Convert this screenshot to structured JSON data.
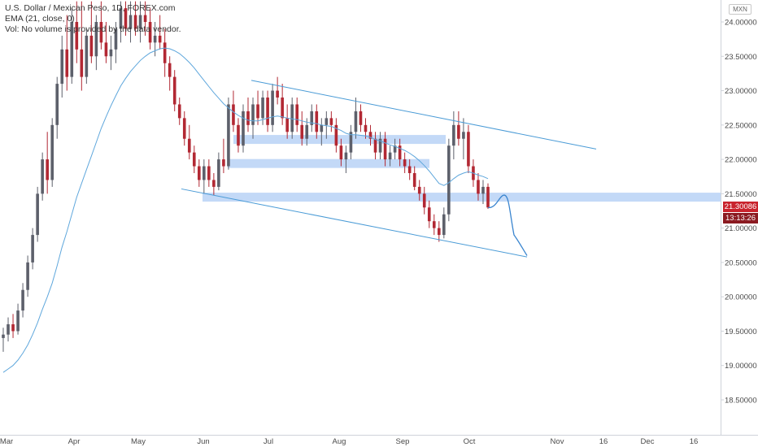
{
  "legend": {
    "title": "U.S. Dollar / Mexican Peso, 1D, FOREX.com",
    "indicator": "EMA (21, close, 0)",
    "volume_note": "Vol: No volume is provided by the data vendor."
  },
  "currency_badge": "MXN",
  "last_price_label": "21.30086",
  "countdown_label": "13:13:26",
  "colors": {
    "up": "#5d606b",
    "down": "#b22833",
    "ema": "#5fa7dc",
    "channel": "#4a9bd6",
    "zone": "#a9c9f3",
    "price_badge": "#c9232d",
    "countdown_badge": "#8b1a21"
  },
  "chart_data": {
    "type": "candlestick",
    "y_ticks": [
      "24.00000",
      "23.50000",
      "23.00000",
      "22.50000",
      "22.00000",
      "21.50000",
      "21.00000",
      "20.50000",
      "20.00000",
      "19.50000",
      "19.00000",
      "18.50000"
    ],
    "x_ticks": [
      "Mar",
      "Apr",
      "May",
      "Jun",
      "Jul",
      "Aug",
      "Sep",
      "Oct",
      "Nov",
      "16",
      "Dec",
      "16"
    ],
    "ylim": [
      18.35,
      24.3
    ],
    "last_price": 21.30086,
    "candles": [
      [
        19.4,
        19.55,
        19.2,
        19.45
      ],
      [
        19.45,
        19.7,
        19.35,
        19.6
      ],
      [
        19.6,
        19.75,
        19.4,
        19.5
      ],
      [
        19.5,
        19.9,
        19.45,
        19.8
      ],
      [
        19.8,
        20.2,
        19.7,
        20.1
      ],
      [
        20.1,
        20.6,
        20.0,
        20.5
      ],
      [
        20.5,
        21.0,
        20.4,
        20.9
      ],
      [
        20.9,
        21.6,
        20.8,
        21.5
      ],
      [
        21.5,
        22.1,
        21.4,
        22.0
      ],
      [
        22.0,
        22.4,
        21.5,
        21.7
      ],
      [
        21.7,
        22.6,
        21.6,
        22.5
      ],
      [
        22.5,
        23.2,
        22.3,
        23.1
      ],
      [
        23.1,
        23.8,
        22.9,
        23.6
      ],
      [
        23.6,
        24.1,
        23.0,
        23.2
      ],
      [
        23.2,
        24.2,
        23.1,
        24.0
      ],
      [
        24.0,
        24.3,
        23.4,
        23.6
      ],
      [
        23.6,
        24.3,
        23.0,
        23.2
      ],
      [
        23.2,
        23.9,
        23.1,
        23.8
      ],
      [
        23.8,
        24.3,
        23.4,
        23.5
      ],
      [
        23.5,
        24.1,
        23.3,
        24.0
      ],
      [
        24.0,
        24.3,
        23.6,
        23.7
      ],
      [
        23.7,
        24.0,
        23.4,
        23.5
      ],
      [
        23.5,
        23.8,
        23.3,
        23.6
      ],
      [
        23.6,
        24.0,
        23.4,
        23.9
      ],
      [
        23.9,
        24.3,
        23.7,
        24.2
      ],
      [
        24.2,
        24.3,
        23.8,
        23.9
      ],
      [
        23.9,
        24.3,
        23.7,
        24.1
      ],
      [
        24.1,
        24.3,
        23.8,
        23.9
      ],
      [
        23.9,
        24.3,
        23.7,
        24.1
      ],
      [
        24.1,
        24.3,
        23.8,
        24.0
      ],
      [
        24.0,
        24.2,
        23.6,
        23.7
      ],
      [
        23.7,
        24.0,
        23.5,
        23.8
      ],
      [
        23.8,
        24.1,
        23.6,
        23.7
      ],
      [
        23.7,
        23.9,
        23.2,
        23.4
      ],
      [
        23.4,
        23.5,
        23.0,
        23.2
      ],
      [
        23.2,
        23.3,
        22.7,
        22.8
      ],
      [
        22.8,
        22.9,
        22.5,
        22.6
      ],
      [
        22.6,
        22.7,
        22.2,
        22.3
      ],
      [
        22.3,
        22.5,
        22.0,
        22.1
      ],
      [
        22.1,
        22.2,
        21.8,
        21.9
      ],
      [
        21.9,
        22.0,
        21.6,
        21.7
      ],
      [
        21.7,
        22.0,
        21.5,
        21.9
      ],
      [
        21.9,
        22.0,
        21.6,
        21.7
      ],
      [
        21.7,
        21.8,
        21.48,
        21.6
      ],
      [
        21.6,
        22.1,
        21.55,
        22.0
      ],
      [
        22.0,
        22.3,
        21.8,
        21.9
      ],
      [
        21.9,
        22.9,
        21.85,
        22.8
      ],
      [
        22.8,
        23.0,
        22.4,
        22.5
      ],
      [
        22.5,
        22.6,
        22.1,
        22.2
      ],
      [
        22.2,
        22.8,
        22.1,
        22.7
      ],
      [
        22.7,
        22.9,
        22.4,
        22.5
      ],
      [
        22.5,
        22.9,
        22.3,
        22.8
      ],
      [
        22.8,
        23.0,
        22.5,
        22.6
      ],
      [
        22.6,
        23.0,
        22.5,
        22.9
      ],
      [
        22.9,
        23.0,
        22.4,
        22.5
      ],
      [
        22.5,
        23.1,
        22.4,
        23.0
      ],
      [
        23.0,
        23.2,
        22.8,
        22.9
      ],
      [
        22.9,
        23.1,
        22.5,
        22.6
      ],
      [
        22.6,
        22.8,
        22.3,
        22.4
      ],
      [
        22.4,
        22.9,
        22.3,
        22.8
      ],
      [
        22.8,
        22.9,
        22.4,
        22.5
      ],
      [
        22.5,
        22.7,
        22.2,
        22.3
      ],
      [
        22.3,
        22.6,
        22.2,
        22.5
      ],
      [
        22.5,
        22.8,
        22.4,
        22.7
      ],
      [
        22.7,
        22.8,
        22.3,
        22.4
      ],
      [
        22.4,
        22.6,
        22.2,
        22.5
      ],
      [
        22.5,
        22.7,
        22.3,
        22.6
      ],
      [
        22.6,
        22.7,
        22.4,
        22.5
      ],
      [
        22.5,
        22.6,
        22.1,
        22.2
      ],
      [
        22.2,
        22.3,
        21.9,
        22.0
      ],
      [
        22.0,
        22.2,
        21.8,
        22.1
      ],
      [
        22.1,
        22.5,
        22.0,
        22.4
      ],
      [
        22.4,
        22.9,
        22.3,
        22.7
      ],
      [
        22.7,
        22.8,
        22.4,
        22.5
      ],
      [
        22.5,
        22.6,
        22.3,
        22.4
      ],
      [
        22.4,
        22.5,
        22.2,
        22.3
      ],
      [
        22.3,
        22.4,
        22.0,
        22.1
      ],
      [
        22.1,
        22.4,
        22.0,
        22.3
      ],
      [
        22.3,
        22.4,
        21.9,
        22.0
      ],
      [
        22.0,
        22.2,
        21.9,
        22.1
      ],
      [
        22.1,
        22.3,
        22.0,
        22.2
      ],
      [
        22.2,
        22.3,
        21.9,
        22.0
      ],
      [
        22.0,
        22.1,
        21.8,
        21.9
      ],
      [
        21.9,
        22.0,
        21.7,
        21.8
      ],
      [
        21.8,
        21.9,
        21.55,
        21.6
      ],
      [
        21.6,
        21.7,
        21.4,
        21.5
      ],
      [
        21.5,
        21.6,
        21.2,
        21.3
      ],
      [
        21.3,
        21.4,
        21.0,
        21.1
      ],
      [
        21.1,
        21.2,
        20.9,
        21.0
      ],
      [
        21.0,
        21.1,
        20.8,
        20.9
      ],
      [
        20.9,
        21.3,
        20.85,
        21.2
      ],
      [
        21.2,
        22.3,
        21.1,
        22.2
      ],
      [
        22.2,
        22.7,
        22.0,
        22.5
      ],
      [
        22.5,
        22.7,
        22.2,
        22.3
      ],
      [
        22.3,
        22.6,
        22.0,
        22.4
      ],
      [
        22.4,
        22.5,
        21.8,
        21.9
      ],
      [
        21.9,
        22.0,
        21.6,
        21.7
      ],
      [
        21.7,
        21.8,
        21.4,
        21.5
      ],
      [
        21.5,
        21.7,
        21.35,
        21.6
      ],
      [
        21.6,
        21.65,
        21.28,
        21.3
      ]
    ],
    "ema_21": [
      18.9,
      18.95,
      19.0,
      19.08,
      19.18,
      19.3,
      19.45,
      19.62,
      19.82,
      20.0,
      20.2,
      20.45,
      20.72,
      20.95,
      21.2,
      21.45,
      21.65,
      21.85,
      22.05,
      22.25,
      22.45,
      22.62,
      22.78,
      22.93,
      23.07,
      23.18,
      23.28,
      23.36,
      23.44,
      23.5,
      23.55,
      23.58,
      23.61,
      23.62,
      23.61,
      23.58,
      23.54,
      23.48,
      23.41,
      23.33,
      23.24,
      23.15,
      23.06,
      22.97,
      22.89,
      22.81,
      22.75,
      22.69,
      22.64,
      22.6,
      22.57,
      22.56,
      22.56,
      22.58,
      22.6,
      22.62,
      22.63,
      22.62,
      22.6,
      22.59,
      22.58,
      22.56,
      22.54,
      22.53,
      22.52,
      22.5,
      22.49,
      22.48,
      22.45,
      22.42,
      22.38,
      22.36,
      22.36,
      22.35,
      22.34,
      22.32,
      22.29,
      22.27,
      22.24,
      22.21,
      22.19,
      22.16,
      22.13,
      22.09,
      22.04,
      21.98,
      21.91,
      21.83,
      21.74,
      21.65,
      21.62,
      21.66,
      21.72,
      21.77,
      21.8,
      21.82,
      21.8,
      21.77,
      21.75,
      21.72
    ],
    "channel_upper": [
      [
        23.15,
        22.15
      ],
      "line from early July to mid-November"
    ],
    "channel_lower": [
      [
        21.57,
        20.58
      ],
      "line from late May to late October"
    ],
    "horizontal_zones": [
      {
        "price": 22.29,
        "span": "mid-June to late September"
      },
      {
        "price": 21.94,
        "span": "mid-June to mid-September"
      },
      {
        "price": 21.45,
        "span": "June to right edge"
      }
    ],
    "projection": [
      21.3,
      21.48,
      21.2,
      20.9,
      20.6
    ]
  }
}
